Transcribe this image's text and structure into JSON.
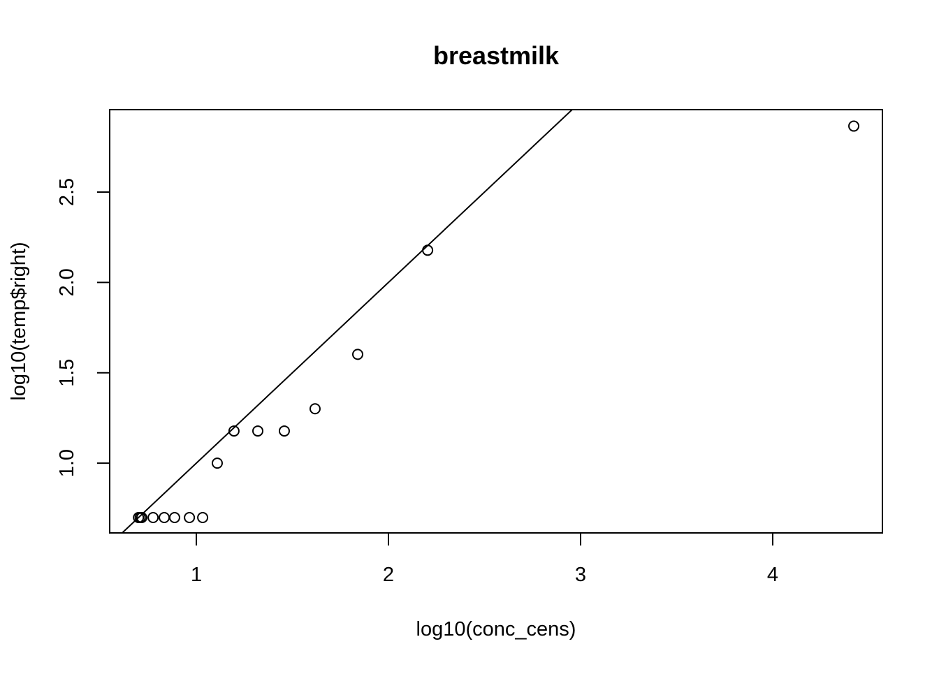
{
  "chart_data": {
    "type": "scatter",
    "title": "breastmilk",
    "x_label": "log10(conc_cens)",
    "y_label": "log10(temp$right)",
    "x": [
      0.699,
      0.708,
      0.716,
      0.775,
      0.833,
      0.887,
      0.964,
      1.033,
      1.109,
      1.196,
      1.32,
      1.458,
      1.618,
      1.84,
      2.204,
      4.422
    ],
    "values": [
      0.699,
      0.699,
      0.699,
      0.699,
      0.699,
      0.699,
      0.699,
      0.699,
      1.0,
      1.178,
      1.178,
      1.178,
      1.301,
      1.602,
      2.178,
      2.865
    ],
    "color": "#000000",
    "reference_line": {
      "intercept": 0,
      "slope": 1
    },
    "xlim": [
      0.549,
      4.571
    ],
    "ylim": [
      0.614,
      2.956
    ],
    "xticks": [
      1,
      2,
      3,
      4
    ],
    "yticks": [
      {
        "value": 1,
        "label": "1.0"
      },
      1.5,
      {
        "value": 2,
        "label": "2.0"
      },
      2.5
    ]
  }
}
